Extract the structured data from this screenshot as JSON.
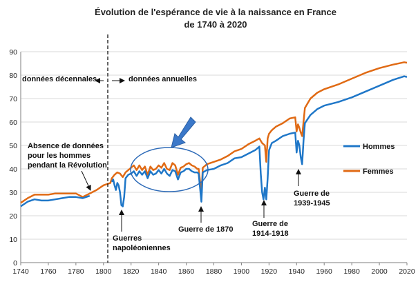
{
  "chart_data": {
    "type": "line",
    "title": "Évolution de l'espérance de vie à la naissance en France",
    "subtitle": "de 1740 à 2020",
    "xlabel": "",
    "ylabel": "",
    "xlim": [
      1740,
      2020
    ],
    "ylim": [
      0,
      90
    ],
    "xticks": [
      1740,
      1760,
      1780,
      1800,
      1820,
      1840,
      1860,
      1880,
      1900,
      1920,
      1940,
      1960,
      1980,
      2000,
      2020
    ],
    "yticks": [
      0,
      10,
      20,
      30,
      40,
      50,
      60,
      70,
      80,
      90
    ],
    "grid": "horizontal",
    "legend_position": "right",
    "series": [
      {
        "name": "Hommes",
        "color": "#1f77c8",
        "points": [
          [
            1740,
            24
          ],
          [
            1745,
            26
          ],
          [
            1750,
            27
          ],
          [
            1755,
            26.5
          ],
          [
            1760,
            26.5
          ],
          [
            1765,
            27
          ],
          [
            1770,
            27.5
          ],
          [
            1775,
            28
          ],
          [
            1780,
            28
          ],
          [
            1785,
            27.5
          ],
          [
            1790,
            28.5
          ],
          [
            1806,
            34.5
          ],
          [
            1807,
            35.5
          ],
          [
            1808,
            33
          ],
          [
            1809,
            31
          ],
          [
            1810,
            34
          ],
          [
            1811,
            33
          ],
          [
            1812,
            30
          ],
          [
            1813,
            24.5
          ],
          [
            1814,
            24
          ],
          [
            1815,
            28
          ],
          [
            1816,
            36
          ],
          [
            1818,
            37.5
          ],
          [
            1820,
            38
          ],
          [
            1822,
            39
          ],
          [
            1824,
            37
          ],
          [
            1826,
            39
          ],
          [
            1828,
            37.5
          ],
          [
            1830,
            39
          ],
          [
            1832,
            36
          ],
          [
            1834,
            39
          ],
          [
            1836,
            37.5
          ],
          [
            1838,
            38
          ],
          [
            1840,
            39.5
          ],
          [
            1842,
            38
          ],
          [
            1844,
            40
          ],
          [
            1846,
            38
          ],
          [
            1848,
            37
          ],
          [
            1850,
            39.5
          ],
          [
            1852,
            39
          ],
          [
            1854,
            35.5
          ],
          [
            1856,
            38.5
          ],
          [
            1858,
            39
          ],
          [
            1860,
            40
          ],
          [
            1862,
            40
          ],
          [
            1864,
            39
          ],
          [
            1866,
            38.5
          ],
          [
            1868,
            38.5
          ],
          [
            1869,
            38
          ],
          [
            1870,
            32
          ],
          [
            1871,
            26
          ],
          [
            1872,
            38.5
          ],
          [
            1875,
            39.5
          ],
          [
            1880,
            40
          ],
          [
            1885,
            41.5
          ],
          [
            1890,
            42.5
          ],
          [
            1895,
            44.5
          ],
          [
            1900,
            45
          ],
          [
            1905,
            46.5
          ],
          [
            1910,
            48
          ],
          [
            1913,
            49.5
          ],
          [
            1914,
            38
          ],
          [
            1915,
            30
          ],
          [
            1916,
            27
          ],
          [
            1917,
            32
          ],
          [
            1918,
            27
          ],
          [
            1919,
            36
          ],
          [
            1920,
            48
          ],
          [
            1922,
            51
          ],
          [
            1925,
            52
          ],
          [
            1930,
            54
          ],
          [
            1935,
            55
          ],
          [
            1939,
            55.5
          ],
          [
            1940,
            47
          ],
          [
            1941,
            52
          ],
          [
            1942,
            50
          ],
          [
            1943,
            45
          ],
          [
            1944,
            42
          ],
          [
            1945,
            52
          ],
          [
            1946,
            59.5
          ],
          [
            1950,
            63
          ],
          [
            1955,
            65.5
          ],
          [
            1960,
            67
          ],
          [
            1970,
            68.5
          ],
          [
            1980,
            70.5
          ],
          [
            1990,
            73
          ],
          [
            2000,
            75.5
          ],
          [
            2010,
            78
          ],
          [
            2018,
            79.5
          ],
          [
            2020,
            79.2
          ]
        ]
      },
      {
        "name": "Femmes",
        "color": "#e06a14",
        "points": [
          [
            1740,
            25.5
          ],
          [
            1745,
            27.5
          ],
          [
            1750,
            29
          ],
          [
            1755,
            29
          ],
          [
            1760,
            29
          ],
          [
            1765,
            29.5
          ],
          [
            1770,
            29.5
          ],
          [
            1775,
            29.5
          ],
          [
            1780,
            29.5
          ],
          [
            1785,
            28
          ],
          [
            1790,
            29.5
          ],
          [
            1795,
            31
          ],
          [
            1800,
            33
          ],
          [
            1805,
            34
          ],
          [
            1806,
            36
          ],
          [
            1808,
            37.5
          ],
          [
            1810,
            38.5
          ],
          [
            1812,
            38
          ],
          [
            1814,
            36.5
          ],
          [
            1816,
            38.5
          ],
          [
            1818,
            39.5
          ],
          [
            1820,
            40.5
          ],
          [
            1822,
            41.5
          ],
          [
            1824,
            39.5
          ],
          [
            1826,
            41.5
          ],
          [
            1828,
            39.5
          ],
          [
            1830,
            41
          ],
          [
            1832,
            37.5
          ],
          [
            1834,
            41
          ],
          [
            1836,
            39.5
          ],
          [
            1838,
            40
          ],
          [
            1840,
            41.5
          ],
          [
            1842,
            40.5
          ],
          [
            1844,
            42.5
          ],
          [
            1846,
            40
          ],
          [
            1848,
            39.5
          ],
          [
            1850,
            42.5
          ],
          [
            1852,
            41.5
          ],
          [
            1854,
            37.5
          ],
          [
            1856,
            40.5
          ],
          [
            1858,
            41
          ],
          [
            1860,
            42
          ],
          [
            1862,
            42.5
          ],
          [
            1864,
            41.5
          ],
          [
            1866,
            41
          ],
          [
            1868,
            40
          ],
          [
            1869,
            40
          ],
          [
            1870,
            35
          ],
          [
            1871,
            29
          ],
          [
            1872,
            40.5
          ],
          [
            1875,
            42
          ],
          [
            1880,
            43
          ],
          [
            1885,
            44
          ],
          [
            1890,
            45.5
          ],
          [
            1895,
            47.5
          ],
          [
            1900,
            48.5
          ],
          [
            1905,
            50.5
          ],
          [
            1910,
            52
          ],
          [
            1913,
            53
          ],
          [
            1914,
            52
          ],
          [
            1915,
            51
          ],
          [
            1916,
            50.5
          ],
          [
            1917,
            50
          ],
          [
            1918,
            43
          ],
          [
            1919,
            53
          ],
          [
            1920,
            55
          ],
          [
            1922,
            56.5
          ],
          [
            1925,
            58
          ],
          [
            1930,
            59.5
          ],
          [
            1935,
            61.5
          ],
          [
            1939,
            62
          ],
          [
            1940,
            56
          ],
          [
            1941,
            59
          ],
          [
            1942,
            57.5
          ],
          [
            1943,
            55.5
          ],
          [
            1944,
            54
          ],
          [
            1945,
            60
          ],
          [
            1946,
            66
          ],
          [
            1950,
            70
          ],
          [
            1955,
            72.5
          ],
          [
            1960,
            74
          ],
          [
            1970,
            76
          ],
          [
            1980,
            78.5
          ],
          [
            1990,
            81
          ],
          [
            2000,
            83
          ],
          [
            2010,
            84.5
          ],
          [
            2018,
            85.5
          ],
          [
            2020,
            85.3
          ]
        ]
      }
    ],
    "annotations": [
      {
        "lines": [
          "données décennales"
        ]
      },
      {
        "lines": [
          "données annuelles"
        ]
      },
      {
        "lines": [
          "Absence de données",
          "pour les hommes",
          "pendant la Révolution"
        ]
      },
      {
        "lines": [
          "Guerres",
          "napoléoniennes"
        ]
      },
      {
        "lines": [
          "Guerre de 1870"
        ]
      },
      {
        "lines": [
          "Guerre de",
          "1914-1918"
        ]
      },
      {
        "lines": [
          "Guerre de",
          "1939-1945"
        ]
      }
    ]
  }
}
